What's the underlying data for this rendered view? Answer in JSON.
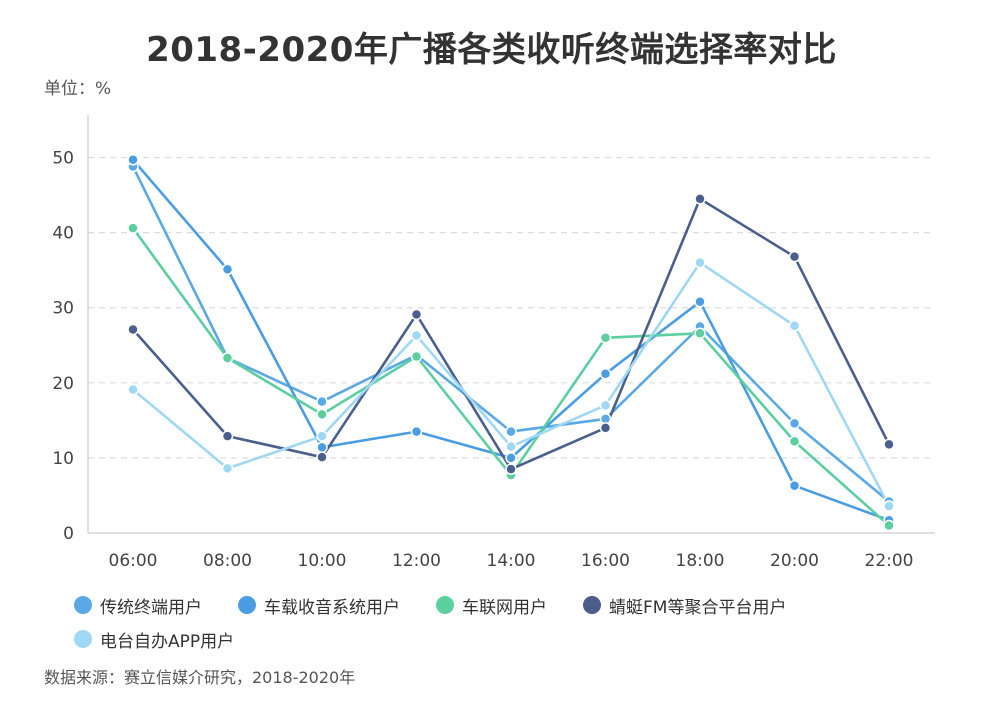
{
  "title": "2018-2020年广播各类收听终端选择率对比",
  "unit_label": "单位：%",
  "source": "数据来源：赛立信媒介研究，2018-2020年",
  "chart_data": {
    "type": "line",
    "title": "2018-2020年广播各类收听终端选择率对比",
    "xlabel": "",
    "ylabel": "",
    "categories": [
      "06:00",
      "08:00",
      "10:00",
      "12:00",
      "14:00",
      "16:00",
      "18:00",
      "20:00",
      "22:00"
    ],
    "ylim": [
      0,
      55
    ],
    "yticks": [
      0,
      10,
      20,
      30,
      40,
      50
    ],
    "grid": true,
    "legend_position": "bottom",
    "series": [
      {
        "name": "传统终端用户",
        "color": "#5aa9e6",
        "values": [
          48.8,
          23.3,
          17.5,
          23.7,
          13.5,
          15.2,
          27.5,
          14.6,
          4.2
        ]
      },
      {
        "name": "车载收音系统用户",
        "color": "#4a9de3",
        "values": [
          49.7,
          35.1,
          11.4,
          13.5,
          10.0,
          21.2,
          30.8,
          6.3,
          1.7
        ]
      },
      {
        "name": "车联网用户",
        "color": "#5ccf9f",
        "values": [
          40.6,
          23.3,
          15.8,
          23.5,
          7.7,
          26.0,
          26.6,
          12.2,
          1.0
        ]
      },
      {
        "name": "蜻蜓FM等聚合平台用户",
        "color": "#4a5f8c",
        "values": [
          27.1,
          12.9,
          10.1,
          29.1,
          8.5,
          14.0,
          44.5,
          36.8,
          11.8
        ]
      },
      {
        "name": "电台自办APP用户",
        "color": "#9fd8f5",
        "values": [
          19.1,
          8.6,
          12.9,
          26.3,
          11.5,
          17.0,
          36.0,
          27.6,
          3.6
        ]
      }
    ]
  }
}
